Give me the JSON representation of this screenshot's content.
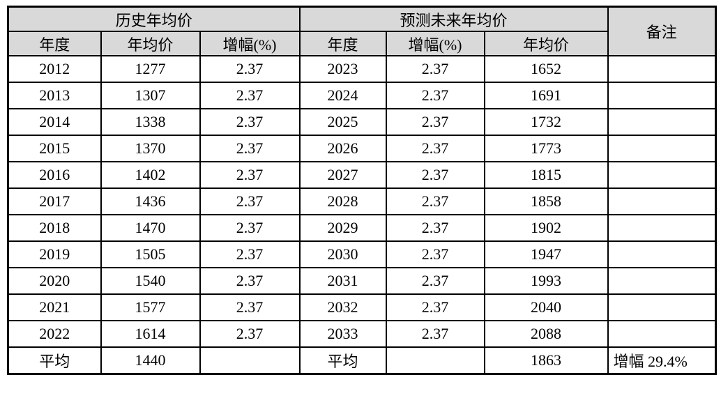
{
  "table": {
    "historical_header": "历史年均价",
    "forecast_header": "预测未来年均价",
    "remark_header": "备注",
    "col_headers": {
      "year": "年度",
      "avg_price": "年均价",
      "growth": "增幅(%)"
    },
    "rows": [
      {
        "h_year": "2012",
        "h_price": "1277",
        "h_growth": "2.37",
        "f_year": "2023",
        "f_growth": "2.37",
        "f_price": "1652",
        "remark": ""
      },
      {
        "h_year": "2013",
        "h_price": "1307",
        "h_growth": "2.37",
        "f_year": "2024",
        "f_growth": "2.37",
        "f_price": "1691",
        "remark": ""
      },
      {
        "h_year": "2014",
        "h_price": "1338",
        "h_growth": "2.37",
        "f_year": "2025",
        "f_growth": "2.37",
        "f_price": "1732",
        "remark": ""
      },
      {
        "h_year": "2015",
        "h_price": "1370",
        "h_growth": "2.37",
        "f_year": "2026",
        "f_growth": "2.37",
        "f_price": "1773",
        "remark": ""
      },
      {
        "h_year": "2016",
        "h_price": "1402",
        "h_growth": "2.37",
        "f_year": "2027",
        "f_growth": "2.37",
        "f_price": "1815",
        "remark": ""
      },
      {
        "h_year": "2017",
        "h_price": "1436",
        "h_growth": "2.37",
        "f_year": "2028",
        "f_growth": "2.37",
        "f_price": "1858",
        "remark": ""
      },
      {
        "h_year": "2018",
        "h_price": "1470",
        "h_growth": "2.37",
        "f_year": "2029",
        "f_growth": "2.37",
        "f_price": "1902",
        "remark": ""
      },
      {
        "h_year": "2019",
        "h_price": "1505",
        "h_growth": "2.37",
        "f_year": "2030",
        "f_growth": "2.37",
        "f_price": "1947",
        "remark": ""
      },
      {
        "h_year": "2020",
        "h_price": "1540",
        "h_growth": "2.37",
        "f_year": "2031",
        "f_growth": "2.37",
        "f_price": "1993",
        "remark": ""
      },
      {
        "h_year": "2021",
        "h_price": "1577",
        "h_growth": "2.37",
        "f_year": "2032",
        "f_growth": "2.37",
        "f_price": "2040",
        "remark": ""
      },
      {
        "h_year": "2022",
        "h_price": "1614",
        "h_growth": "2.37",
        "f_year": "2033",
        "f_growth": "2.37",
        "f_price": "2088",
        "remark": ""
      }
    ],
    "average_row": {
      "h_label": "平均",
      "h_price": "1440",
      "h_growth": "",
      "f_label": "平均",
      "f_growth": "",
      "f_price": "1863",
      "remark": "增幅 29.4%"
    }
  },
  "colors": {
    "header_bg": "#d9d9d9",
    "grid_border": "#000000",
    "text": "#000000",
    "page_bg": "#ffffff"
  }
}
